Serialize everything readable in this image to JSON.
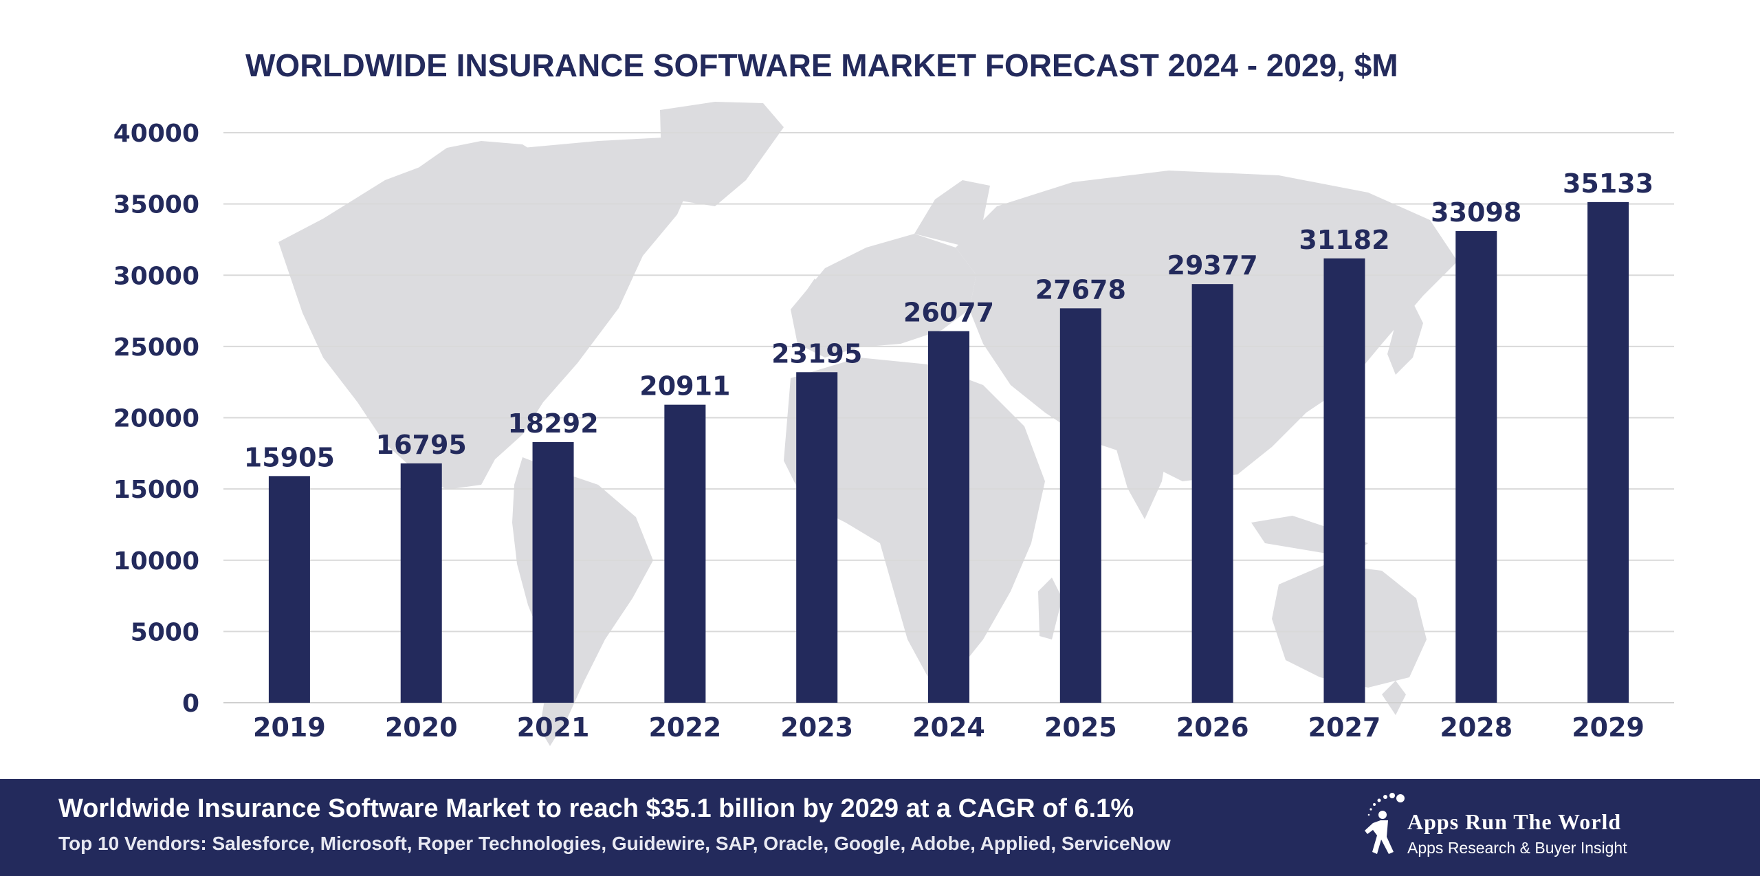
{
  "chart_data": {
    "type": "bar",
    "title": "WORLDWIDE INSURANCE SOFTWARE MARKET FORECAST 2024 - 2029, $M",
    "categories": [
      "2019",
      "2020",
      "2021",
      "2022",
      "2023",
      "2024",
      "2025",
      "2026",
      "2027",
      "2028",
      "2029"
    ],
    "values": [
      15905,
      16795,
      18292,
      20911,
      23195,
      26077,
      27678,
      29377,
      31182,
      33098,
      35133
    ],
    "data_labels": [
      "15905",
      "16795",
      "18292",
      "20911",
      "23195",
      "26077",
      "27678",
      "29377",
      "31182",
      "33098",
      "35133"
    ],
    "ylim": [
      0,
      40000
    ],
    "yticks": [
      0,
      5000,
      10000,
      15000,
      20000,
      25000,
      30000,
      35000,
      40000
    ],
    "ytick_labels": [
      "0",
      "5000",
      "10000",
      "15000",
      "20000",
      "25000",
      "30000",
      "35000",
      "40000"
    ],
    "xlabel": "",
    "ylabel": "",
    "grid": true,
    "background": "world-map-icon",
    "colors": {
      "bar": "#232a5c",
      "grid": "#d9d9d9",
      "map": "#dcdcdf",
      "text": "#232a5c"
    }
  },
  "footer": {
    "headline": "Worldwide Insurance Software Market to reach $35.1 billion by 2029 at a CAGR of 6.1%",
    "vendors": "Top 10 Vendors: Salesforce, Microsoft, Roper Technologies, Guidewire, SAP, Oracle, Google, Adobe, Applied, ServiceNow",
    "background_color": "#232a5c"
  },
  "brand": {
    "name": "Apps Run The World",
    "tagline": "Apps Research & Buyer Insight",
    "logo": "runner-figure-icon"
  }
}
